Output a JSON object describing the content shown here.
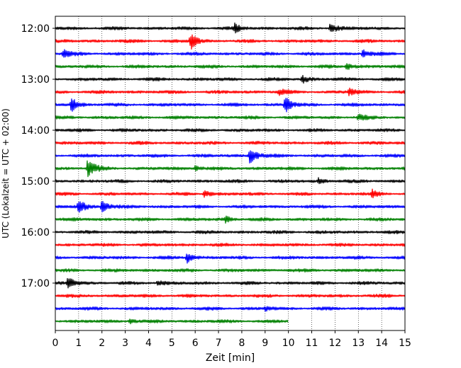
{
  "chart_data": {
    "type": "line",
    "title": "",
    "xlabel": "Zeit  [min]",
    "ylabel": "UTC (Lokalzeit = UTC + 02:00)",
    "xlim": [
      0,
      15
    ],
    "x_ticks": [
      "0",
      "1",
      "2",
      "3",
      "4",
      "5",
      "6",
      "7",
      "8",
      "9",
      "10",
      "11",
      "12",
      "13",
      "14",
      "15"
    ],
    "y_ticks": [
      "12:00",
      "13:00",
      "14:00",
      "15:00",
      "16:00",
      "17:00"
    ],
    "grid": "vertical dotted at each minute",
    "legend": "none",
    "colors": [
      "#000000",
      "#ff0000",
      "#0000ff",
      "#008000"
    ],
    "traces": [
      {
        "start": "12:00",
        "end_min": 15,
        "events": [
          {
            "t": 7.7,
            "a": 6
          },
          {
            "t": 11.8,
            "a": 8
          }
        ]
      },
      {
        "start": "12:15",
        "end_min": 15,
        "events": [
          {
            "t": 5.8,
            "a": 12
          }
        ]
      },
      {
        "start": "12:30",
        "end_min": 15,
        "events": [
          {
            "t": 0.35,
            "a": 6
          },
          {
            "t": 13.2,
            "a": 6
          }
        ]
      },
      {
        "start": "12:45",
        "end_min": 15,
        "events": [
          {
            "t": 12.5,
            "a": 5
          }
        ]
      },
      {
        "start": "13:00",
        "end_min": 15,
        "events": [
          {
            "t": 10.6,
            "a": 5
          }
        ]
      },
      {
        "start": "13:15",
        "end_min": 15,
        "events": [
          {
            "t": 9.6,
            "a": 4
          },
          {
            "t": 12.6,
            "a": 5
          }
        ]
      },
      {
        "start": "13:30",
        "end_min": 15,
        "events": [
          {
            "t": 0.7,
            "a": 10
          },
          {
            "t": 9.85,
            "a": 12
          }
        ]
      },
      {
        "start": "13:45",
        "end_min": 15,
        "events": [
          {
            "t": 13.0,
            "a": 4
          }
        ]
      },
      {
        "start": "14:00",
        "end_min": 15,
        "events": []
      },
      {
        "start": "14:15",
        "end_min": 15,
        "events": []
      },
      {
        "start": "14:30",
        "end_min": 15,
        "events": [
          {
            "t": 8.35,
            "a": 14
          }
        ]
      },
      {
        "start": "14:45",
        "end_min": 15,
        "events": [
          {
            "t": 1.4,
            "a": 16
          },
          {
            "t": 6.0,
            "a": 4
          }
        ]
      },
      {
        "start": "15:00",
        "end_min": 15,
        "events": [
          {
            "t": 11.3,
            "a": 4
          }
        ]
      },
      {
        "start": "15:15",
        "end_min": 15,
        "events": [
          {
            "t": 6.4,
            "a": 5
          },
          {
            "t": 13.6,
            "a": 5
          }
        ]
      },
      {
        "start": "15:30",
        "end_min": 15,
        "events": [
          {
            "t": 1.0,
            "a": 10
          },
          {
            "t": 2.0,
            "a": 12
          }
        ]
      },
      {
        "start": "15:45",
        "end_min": 15,
        "events": [
          {
            "t": 7.3,
            "a": 4
          }
        ]
      },
      {
        "start": "16:00",
        "end_min": 15,
        "events": []
      },
      {
        "start": "16:15",
        "end_min": 15,
        "events": []
      },
      {
        "start": "16:30",
        "end_min": 15,
        "events": [
          {
            "t": 5.65,
            "a": 7
          }
        ]
      },
      {
        "start": "16:45",
        "end_min": 15,
        "events": []
      },
      {
        "start": "17:00",
        "end_min": 15,
        "events": [
          {
            "t": 0.55,
            "a": 10
          },
          {
            "t": 4.4,
            "a": 4
          }
        ]
      },
      {
        "start": "17:15",
        "end_min": 15,
        "events": []
      },
      {
        "start": "17:30",
        "end_min": 15,
        "events": [
          {
            "t": 9.0,
            "a": 3
          }
        ]
      },
      {
        "start": "17:45",
        "end_min": 10,
        "events": [
          {
            "t": 3.2,
            "a": 3
          }
        ]
      }
    ]
  }
}
